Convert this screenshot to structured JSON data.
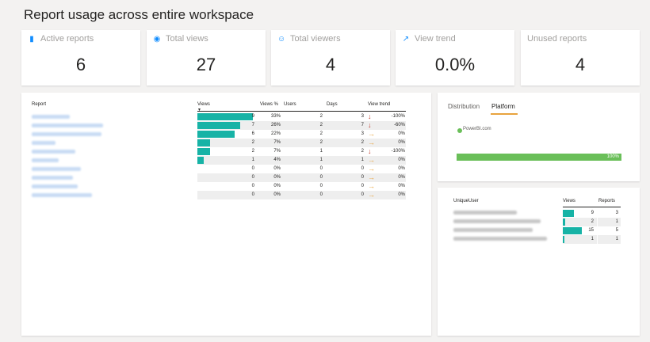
{
  "page_title": "Report usage across entire workspace",
  "kpis": [
    {
      "label": "Active reports",
      "value": "6",
      "icon": "document-icon"
    },
    {
      "label": "Total views",
      "value": "27",
      "icon": "eye-icon"
    },
    {
      "label": "Total viewers",
      "value": "4",
      "icon": "person-icon"
    },
    {
      "label": "View trend",
      "value": "0.0%",
      "icon": "trend-icon"
    },
    {
      "label": "Unused reports",
      "value": "4",
      "icon": ""
    }
  ],
  "report_table": {
    "headers": [
      "Report",
      "Views",
      "Views %",
      "Users",
      "Days",
      "View trend"
    ],
    "rows": [
      {
        "views": "9",
        "pct": "33%",
        "users": "2",
        "days": "3",
        "trend": "-100%",
        "dir": "down",
        "fraction": 1.0
      },
      {
        "views": "7",
        "pct": "26%",
        "users": "2",
        "days": "7",
        "trend": "-60%",
        "dir": "down",
        "fraction": 0.7778
      },
      {
        "views": "6",
        "pct": "22%",
        "users": "2",
        "days": "3",
        "trend": "0%",
        "dir": "flat",
        "fraction": 0.6667
      },
      {
        "views": "2",
        "pct": "7%",
        "users": "2",
        "days": "2",
        "trend": "0%",
        "dir": "flat",
        "fraction": 0.2222
      },
      {
        "views": "2",
        "pct": "7%",
        "users": "1",
        "days": "2",
        "trend": "-100%",
        "dir": "down",
        "fraction": 0.2222
      },
      {
        "views": "1",
        "pct": "4%",
        "users": "1",
        "days": "1",
        "trend": "0%",
        "dir": "flat",
        "fraction": 0.1111
      },
      {
        "views": "0",
        "pct": "0%",
        "users": "0",
        "days": "0",
        "trend": "0%",
        "dir": "flat",
        "fraction": 0
      },
      {
        "views": "0",
        "pct": "0%",
        "users": "0",
        "days": "0",
        "trend": "0%",
        "dir": "flat",
        "fraction": 0
      },
      {
        "views": "0",
        "pct": "0%",
        "users": "0",
        "days": "0",
        "trend": "0%",
        "dir": "flat",
        "fraction": 0
      },
      {
        "views": "0",
        "pct": "0%",
        "users": "0",
        "days": "0",
        "trend": "0%",
        "dir": "flat",
        "fraction": 0
      }
    ]
  },
  "platform_panel": {
    "tabs": [
      "Distribution",
      "Platform"
    ],
    "active_tab": "Platform",
    "legend_label": "PowerBI.com",
    "bar_label": "100%",
    "bar_fraction": 1.0
  },
  "user_table": {
    "headers": [
      "UniqueUser",
      "Views",
      "Reports"
    ],
    "rows": [
      {
        "views": "9",
        "reports": "3",
        "fraction": 0.6
      },
      {
        "views": "2",
        "reports": "1",
        "fraction": 0.1333
      },
      {
        "views": "15",
        "reports": "5",
        "fraction": 1.0
      },
      {
        "views": "1",
        "reports": "1",
        "fraction": 0.0667
      }
    ]
  },
  "colors": {
    "teal": "#17b3a6",
    "down": "#c0392b",
    "flat": "#e8a33d",
    "accent": "#118dff",
    "green": "#6abf59",
    "tab_underline": "#e8a33d"
  }
}
